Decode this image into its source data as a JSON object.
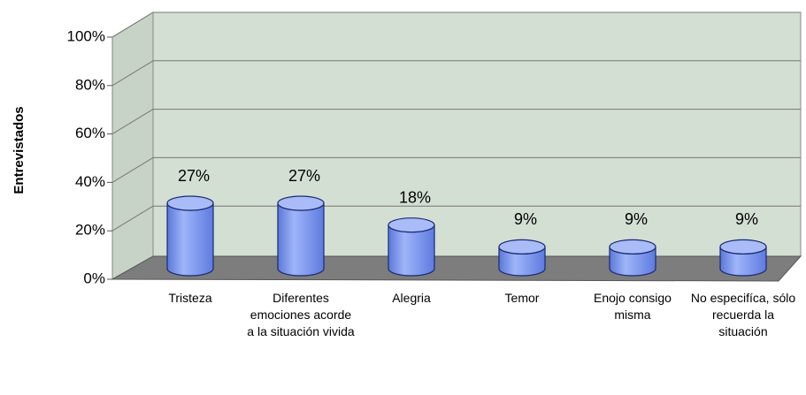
{
  "chart_data": {
    "type": "bar",
    "ylabel": "Entrevistados",
    "categories": [
      "Tristeza",
      "Diferentes emociones acorde a la situación vivida",
      "Alegria",
      "Temor",
      "Enojo consigo misma",
      "No especifíca, sólo recuerda la situación"
    ],
    "values": [
      27,
      27,
      18,
      9,
      9,
      9
    ],
    "value_labels": [
      "27%",
      "27%",
      "18%",
      "9%",
      "9%",
      "9%"
    ],
    "color": "#7f9cf0",
    "ylim": [
      0,
      100
    ],
    "yticks": [
      {
        "value": 0,
        "label": "0%"
      },
      {
        "value": 20,
        "label": "20%"
      },
      {
        "value": 40,
        "label": "40%"
      },
      {
        "value": 60,
        "label": "60%"
      },
      {
        "value": 80,
        "label": "80%"
      },
      {
        "value": 100,
        "label": "100%"
      }
    ],
    "grid": true
  }
}
